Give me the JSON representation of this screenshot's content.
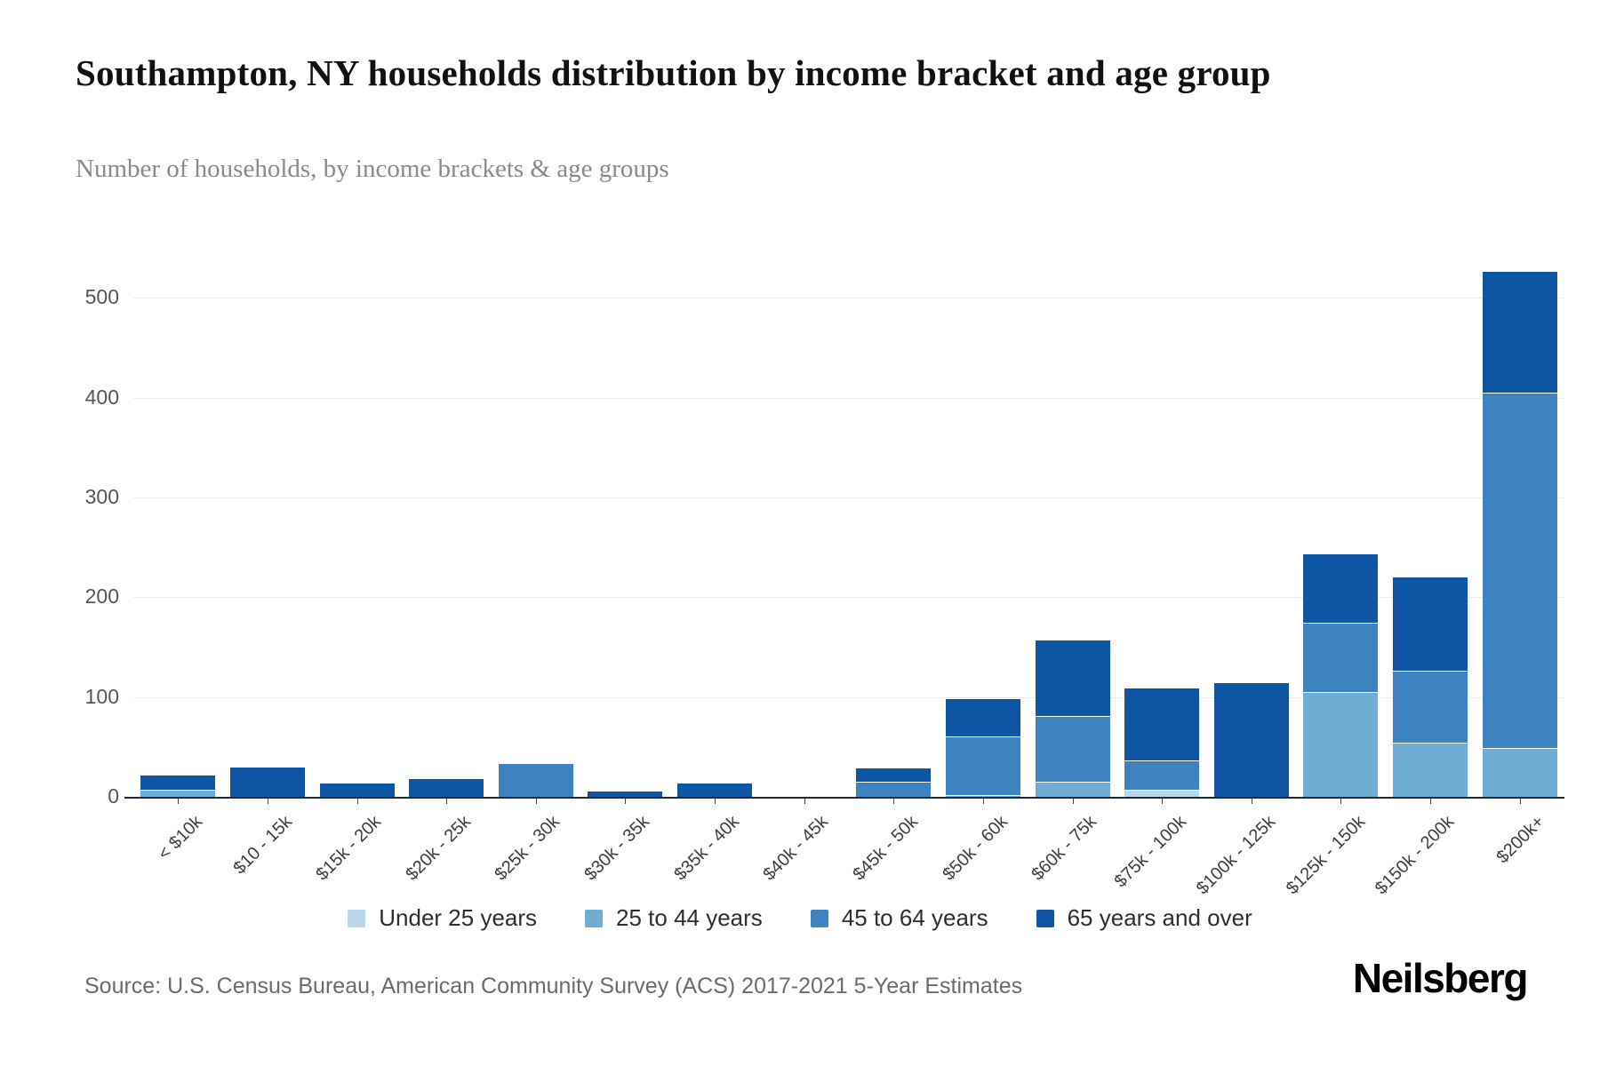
{
  "header": {
    "title": "Southampton, NY households distribution by income bracket and age group",
    "subtitle": "Number of households, by income brackets & age groups"
  },
  "chart_data": {
    "type": "bar",
    "stacked": true,
    "title": "Southampton, NY households distribution by income bracket and age group",
    "xlabel": "",
    "ylabel": "Number of households",
    "ylim": [
      0,
      550
    ],
    "yticks": [
      0,
      100,
      200,
      300,
      400,
      500
    ],
    "grid": true,
    "legend_position": "bottom",
    "categories": [
      "< $10k",
      "$10 - 15k",
      "$15k - 20k",
      "$20k - 25k",
      "$25k - 30k",
      "$30k - 35k",
      "$35k - 40k",
      "$40k - 45k",
      "$45k - 50k",
      "$50k - 60k",
      "$60k - 75k",
      "$75k - 100k",
      "$100k - 125k",
      "$125k - 150k",
      "$150k - 200k",
      "$200k+"
    ],
    "series": [
      {
        "name": "Under 25 years",
        "color": "#b9d6ea",
        "values": [
          0,
          0,
          0,
          0,
          0,
          0,
          0,
          0,
          0,
          0,
          0,
          8,
          0,
          0,
          0,
          0
        ]
      },
      {
        "name": "25 to 44 years",
        "color": "#6fadd5",
        "values": [
          8,
          0,
          0,
          0,
          0,
          0,
          0,
          0,
          0,
          3,
          16,
          0,
          0,
          106,
          55,
          50
        ]
      },
      {
        "name": "45 to 64 years",
        "color": "#3d83c0",
        "values": [
          0,
          0,
          0,
          0,
          35,
          0,
          0,
          0,
          16,
          58,
          66,
          29,
          0,
          69,
          72,
          356
        ]
      },
      {
        "name": "65 years and over",
        "color": "#0e55a4",
        "values": [
          15,
          31,
          15,
          20,
          0,
          7,
          15,
          0,
          14,
          39,
          76,
          73,
          116,
          70,
          95,
          122
        ]
      }
    ]
  },
  "footer": {
    "source": "Source: U.S. Census Bureau, American Community Survey (ACS) 2017-2021 5-Year Estimates",
    "logo": "Neilsberg"
  }
}
